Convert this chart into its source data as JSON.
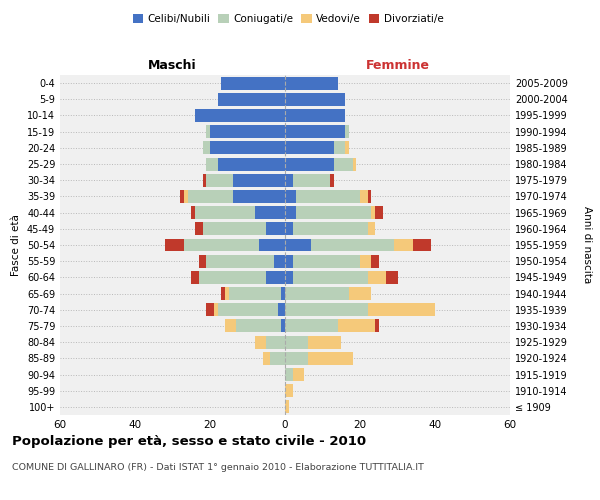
{
  "age_groups": [
    "100+",
    "95-99",
    "90-94",
    "85-89",
    "80-84",
    "75-79",
    "70-74",
    "65-69",
    "60-64",
    "55-59",
    "50-54",
    "45-49",
    "40-44",
    "35-39",
    "30-34",
    "25-29",
    "20-24",
    "15-19",
    "10-14",
    "5-9",
    "0-4"
  ],
  "birth_years": [
    "≤ 1909",
    "1910-1914",
    "1915-1919",
    "1920-1924",
    "1925-1929",
    "1930-1934",
    "1935-1939",
    "1940-1944",
    "1945-1949",
    "1950-1954",
    "1955-1959",
    "1960-1964",
    "1965-1969",
    "1970-1974",
    "1975-1979",
    "1980-1984",
    "1985-1989",
    "1990-1994",
    "1995-1999",
    "2000-2004",
    "2005-2009"
  ],
  "maschi": {
    "celibi": [
      0,
      0,
      0,
      0,
      0,
      1,
      2,
      1,
      5,
      3,
      7,
      5,
      8,
      14,
      14,
      18,
      20,
      20,
      24,
      18,
      17
    ],
    "coniugati": [
      0,
      0,
      0,
      4,
      5,
      12,
      16,
      14,
      18,
      18,
      20,
      17,
      16,
      12,
      7,
      3,
      2,
      1,
      0,
      0,
      0
    ],
    "vedovi": [
      0,
      0,
      0,
      2,
      3,
      3,
      1,
      1,
      0,
      0,
      0,
      0,
      0,
      1,
      0,
      0,
      0,
      0,
      0,
      0,
      0
    ],
    "divorziati": [
      0,
      0,
      0,
      0,
      0,
      0,
      2,
      1,
      2,
      2,
      5,
      2,
      1,
      1,
      1,
      0,
      0,
      0,
      0,
      0,
      0
    ]
  },
  "femmine": {
    "nubili": [
      0,
      0,
      0,
      0,
      0,
      0,
      0,
      0,
      2,
      2,
      7,
      2,
      3,
      3,
      2,
      13,
      13,
      16,
      16,
      16,
      14
    ],
    "coniugate": [
      0,
      0,
      2,
      6,
      6,
      14,
      22,
      17,
      20,
      18,
      22,
      20,
      20,
      17,
      10,
      5,
      3,
      1,
      0,
      0,
      0
    ],
    "vedove": [
      1,
      2,
      3,
      12,
      9,
      10,
      18,
      6,
      5,
      3,
      5,
      2,
      1,
      2,
      0,
      1,
      1,
      0,
      0,
      0,
      0
    ],
    "divorziate": [
      0,
      0,
      0,
      0,
      0,
      1,
      0,
      0,
      3,
      2,
      5,
      0,
      2,
      1,
      1,
      0,
      0,
      0,
      0,
      0,
      0
    ]
  },
  "colors": {
    "celibi_nubili": "#4472C4",
    "coniugati": "#B8D0B8",
    "vedovi": "#F5C97A",
    "divorziati": "#C0392B"
  },
  "xlim": 60,
  "title": "Popolazione per età, sesso e stato civile - 2010",
  "subtitle": "COMUNE DI GALLINARO (FR) - Dati ISTAT 1° gennaio 2010 - Elaborazione TUTTITALIA.IT",
  "ylabel_left": "Fasce di età",
  "ylabel_right": "Anni di nascita",
  "xlabel_left": "Maschi",
  "xlabel_right": "Femmine"
}
